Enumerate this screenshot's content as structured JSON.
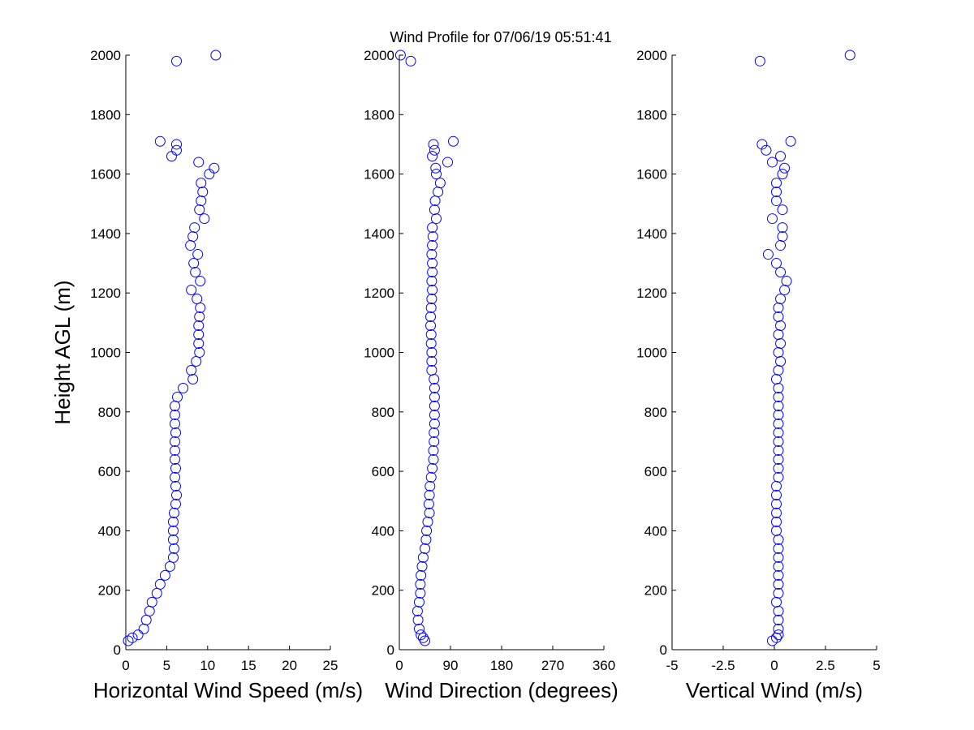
{
  "chart_data": [
    {
      "type": "scatter",
      "ylabel": "Height AGL (m)",
      "xlabel": "Horizontal Wind Speed (m/s)",
      "color": "#0000ff",
      "xlim": [
        0,
        25
      ],
      "xticks": [
        0,
        5,
        10,
        15,
        20,
        25
      ],
      "ylim": [
        0,
        2000
      ],
      "yticks": [
        0,
        200,
        400,
        600,
        800,
        1000,
        1200,
        1400,
        1600,
        1800,
        2000
      ],
      "y": [
        30,
        40,
        50,
        70,
        100,
        130,
        160,
        190,
        220,
        250,
        280,
        310,
        340,
        370,
        400,
        430,
        460,
        490,
        520,
        550,
        580,
        610,
        640,
        670,
        700,
        730,
        760,
        790,
        820,
        850,
        880,
        910,
        940,
        970,
        1000,
        1030,
        1060,
        1090,
        1120,
        1150,
        1180,
        1210,
        1240,
        1270,
        1300,
        1330,
        1360,
        1390,
        1420,
        1450,
        1480,
        1510,
        1540,
        1570,
        1600,
        1620,
        1640,
        1660,
        1680,
        1700,
        1710,
        1980,
        2000
      ],
      "x": [
        0.3,
        0.8,
        1.5,
        2.2,
        2.5,
        2.9,
        3.2,
        3.8,
        4.2,
        4.8,
        5.4,
        5.8,
        5.9,
        5.8,
        5.8,
        5.8,
        5.9,
        6.1,
        6.2,
        6.1,
        6.0,
        6.1,
        6.0,
        6.0,
        6.0,
        6.1,
        6.0,
        6.0,
        6.0,
        6.3,
        7.0,
        8.2,
        8.0,
        8.6,
        9.0,
        8.9,
        8.9,
        8.9,
        9.0,
        9.1,
        8.7,
        8.0,
        9.1,
        8.5,
        8.3,
        8.8,
        7.9,
        8.2,
        8.4,
        9.6,
        9.0,
        9.2,
        9.4,
        9.2,
        10.2,
        10.8,
        8.9,
        5.6,
        6.2,
        6.2,
        4.2,
        6.2,
        11.0
      ]
    },
    {
      "type": "scatter",
      "title": "Wind Profile for  07/06/19 05:51:41",
      "xlabel": "Wind Direction (degrees)",
      "color": "#0000ff",
      "xlim": [
        0,
        360
      ],
      "xticks": [
        0,
        90,
        180,
        270,
        360
      ],
      "ylim": [
        0,
        2000
      ],
      "yticks": [
        0,
        200,
        400,
        600,
        800,
        1000,
        1200,
        1400,
        1600,
        1800,
        2000
      ],
      "y": [
        30,
        40,
        50,
        70,
        100,
        130,
        160,
        190,
        220,
        250,
        280,
        310,
        340,
        370,
        400,
        430,
        460,
        490,
        520,
        550,
        580,
        610,
        640,
        670,
        700,
        730,
        760,
        790,
        820,
        850,
        880,
        910,
        940,
        970,
        1000,
        1030,
        1060,
        1090,
        1120,
        1150,
        1180,
        1210,
        1240,
        1270,
        1300,
        1330,
        1360,
        1390,
        1420,
        1450,
        1480,
        1510,
        1540,
        1570,
        1600,
        1620,
        1640,
        1660,
        1680,
        1700,
        1710,
        1980,
        2000
      ],
      "x": [
        45,
        42,
        38,
        35,
        33,
        32,
        35,
        37,
        37,
        38,
        40,
        42,
        45,
        47,
        48,
        50,
        53,
        52,
        53,
        54,
        56,
        58,
        60,
        60,
        61,
        61,
        62,
        62,
        62,
        62,
        62,
        61,
        57,
        57,
        57,
        56,
        56,
        55,
        55,
        56,
        57,
        58,
        57,
        58,
        58,
        57,
        58,
        59,
        58,
        65,
        62,
        63,
        68,
        72,
        65,
        64,
        85,
        58,
        62,
        60,
        95,
        20,
        2
      ]
    },
    {
      "type": "scatter",
      "xlabel": "Vertical Wind (m/s)",
      "color": "#0000ff",
      "xlim": [
        -5,
        5
      ],
      "xticks": [
        -5,
        -2.5,
        0,
        2.5,
        5
      ],
      "ylim": [
        0,
        2000
      ],
      "yticks": [
        0,
        200,
        400,
        600,
        800,
        1000,
        1200,
        1400,
        1600,
        1800,
        2000
      ],
      "y": [
        30,
        40,
        50,
        70,
        100,
        130,
        160,
        190,
        220,
        250,
        280,
        310,
        340,
        370,
        400,
        430,
        460,
        490,
        520,
        550,
        580,
        610,
        640,
        670,
        700,
        730,
        760,
        790,
        820,
        850,
        880,
        910,
        940,
        970,
        1000,
        1030,
        1060,
        1090,
        1120,
        1150,
        1180,
        1210,
        1240,
        1270,
        1300,
        1330,
        1360,
        1390,
        1420,
        1450,
        1480,
        1510,
        1540,
        1570,
        1600,
        1620,
        1640,
        1660,
        1680,
        1700,
        1710,
        1980,
        2000
      ],
      "x": [
        -0.1,
        0.1,
        0.2,
        0.2,
        0.2,
        0.2,
        0.1,
        0.2,
        0.2,
        0.2,
        0.2,
        0.2,
        0.2,
        0.2,
        0.1,
        0.1,
        0.1,
        0.1,
        0.1,
        0.1,
        0.2,
        0.2,
        0.2,
        0.2,
        0.2,
        0.2,
        0.2,
        0.2,
        0.2,
        0.2,
        0.2,
        0.1,
        0.2,
        0.3,
        0.2,
        0.3,
        0.2,
        0.3,
        0.2,
        0.2,
        0.3,
        0.5,
        0.6,
        0.3,
        0.1,
        -0.3,
        0.3,
        0.4,
        0.4,
        -0.1,
        0.4,
        0.1,
        0.1,
        0.1,
        0.4,
        0.5,
        -0.1,
        0.3,
        -0.4,
        -0.6,
        0.8,
        -0.7,
        3.7
      ]
    }
  ]
}
